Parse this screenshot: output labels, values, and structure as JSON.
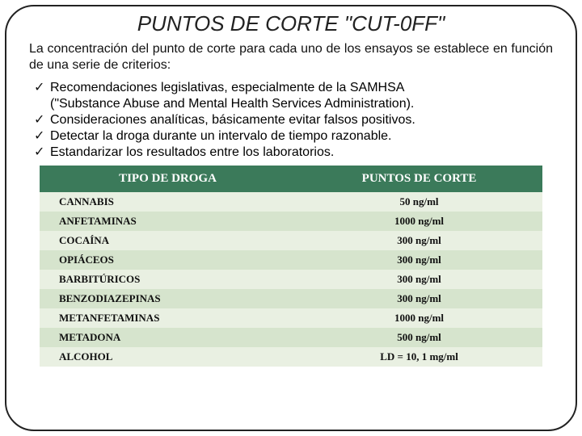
{
  "title": {
    "text": "PUNTOS DE CORTE \"CUT-0FF\"",
    "fontsize": 26
  },
  "intro": {
    "text": "La concentración del punto de corte para cada uno de los ensayos se establece en función de una serie de criterios:",
    "fontsize": 16
  },
  "bullets": {
    "fontsize": 16,
    "items": [
      "Recomendaciones legislativas, especialmente de la SAMHSA",
      "(\"Substance Abuse and Mental Health Services Administration).",
      "Consideraciones analíticas, básicamente evitar falsos positivos.",
      "Detectar la droga durante un intervalo de tiempo razonable.",
      "Estandarizar los resultados entre los laboratorios."
    ],
    "is_continuation": [
      false,
      true,
      false,
      false,
      false
    ]
  },
  "table": {
    "type": "table",
    "header_bg": "#3b7a5a",
    "header_color": "#ffffff",
    "row_colors": [
      "#e9f0e2",
      "#d6e4cd"
    ],
    "text_color": "#111111",
    "fontsize_header": 15,
    "fontsize_cell": 13,
    "columns": [
      "TIPO DE DROGA",
      "PUNTOS DE CORTE"
    ],
    "rows": [
      [
        "CANNABIS",
        "50 ng/ml"
      ],
      [
        "ANFETAMINAS",
        "1000 ng/ml"
      ],
      [
        "COCAÍNA",
        "300 ng/ml"
      ],
      [
        "OPIÁCEOS",
        "300 ng/ml"
      ],
      [
        "BARBITÚRICOS",
        "300 ng/ml"
      ],
      [
        "BENZODIAZEPINAS",
        "300 ng/ml"
      ],
      [
        "METANFETAMINAS",
        "1000 ng/ml"
      ],
      [
        "METADONA",
        "500 ng/ml"
      ],
      [
        "ALCOHOL",
        "LD = 10, 1 mg/ml"
      ]
    ]
  },
  "colors": {
    "frame_border": "#222222",
    "background": "#ffffff"
  }
}
